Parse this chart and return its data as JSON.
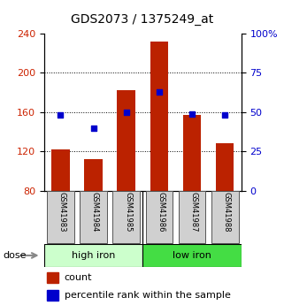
{
  "title": "GDS2073 / 1375249_at",
  "categories": [
    "GSM41983",
    "GSM41984",
    "GSM41985",
    "GSM41986",
    "GSM41987",
    "GSM41988"
  ],
  "bar_values": [
    122,
    112,
    182,
    232,
    157,
    128
  ],
  "blue_dot_values": [
    48,
    40,
    50,
    63,
    49,
    48
  ],
  "ylim_left": [
    80,
    240
  ],
  "ylim_right": [
    0,
    100
  ],
  "yticks_left": [
    80,
    120,
    160,
    200,
    240
  ],
  "yticks_right": [
    0,
    25,
    50,
    75,
    100
  ],
  "ytick_labels_right": [
    "0",
    "25",
    "50",
    "75",
    "100%"
  ],
  "bar_color": "#bb2200",
  "dot_color": "#0000cc",
  "high_iron_color": "#ccffcc",
  "low_iron_color": "#44dd44",
  "dose_label": "dose",
  "legend_count_label": "count",
  "legend_percentile_label": "percentile rank within the sample",
  "tick_label_color_left": "#cc2200",
  "tick_label_color_right": "#0000cc",
  "grid_ticks": [
    120,
    160,
    200
  ]
}
